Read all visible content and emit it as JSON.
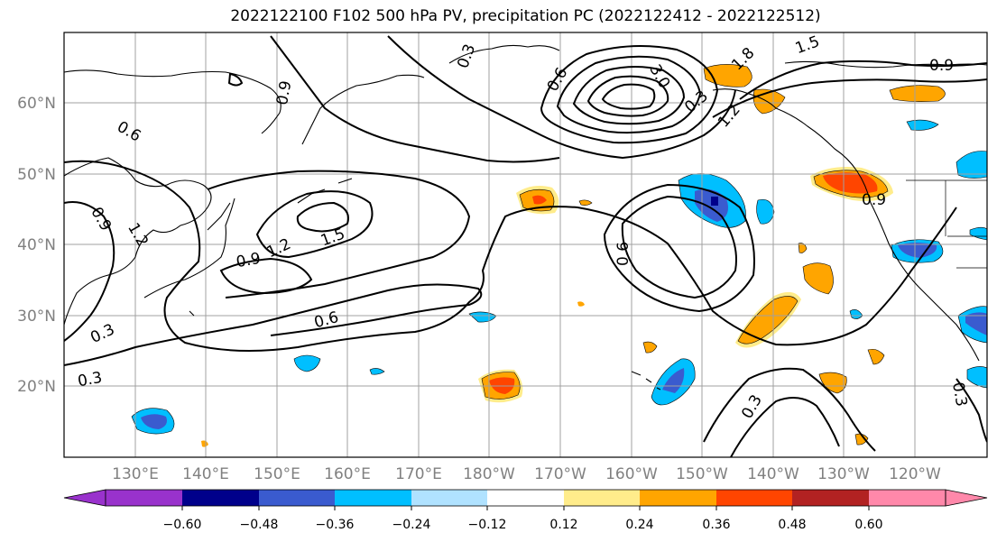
{
  "title": "2022122100 F102 500 hPa PV, precipitation PC (2022122412 - 2022122512)",
  "lat_labels": [
    "60°N",
    "50°N",
    "40°N",
    "30°N",
    "20°N"
  ],
  "lon_labels": [
    "130°E",
    "140°E",
    "150°E",
    "160°E",
    "170°E",
    "180°W",
    "170°W",
    "160°W",
    "150°W",
    "140°W",
    "130°W",
    "120°W"
  ],
  "contour_labels": [
    "0.3",
    "0.6",
    "0.9",
    "1.2",
    "1.5",
    "1.8",
    "3.0",
    "0.9",
    "0.6",
    "0.3",
    "0.9",
    "0.6",
    "0.3",
    "1.2",
    "0.9",
    "1.5",
    "0.6",
    "0.3",
    "0.9",
    "1.2",
    "0.3",
    "0.3"
  ],
  "colorbar": {
    "ticks": [
      "−0.60",
      "−0.48",
      "−0.36",
      "−0.24",
      "−0.12",
      "0.12",
      "0.24",
      "0.36",
      "0.48",
      "0.60"
    ],
    "colors": [
      "#9932cc",
      "#00008b",
      "#3a5bcf",
      "#00bfff",
      "#b0e2ff",
      "#ffffff",
      "#ffec8b",
      "#ffa500",
      "#ff4500",
      "#b22222",
      "#ff88aa"
    ]
  },
  "colors": {
    "neg_strong": "#3a5bcf",
    "neg_mid": "#00bfff",
    "neg_light": "#b0e2ff",
    "pos_light": "#ffec8b",
    "pos_mid": "#ffa500",
    "pos_strong": "#ff4500"
  }
}
